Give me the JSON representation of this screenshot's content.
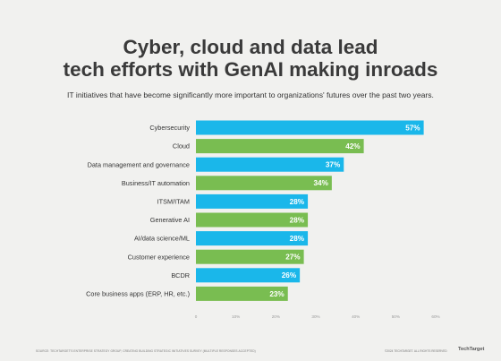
{
  "chart_data": {
    "type": "bar",
    "orientation": "horizontal",
    "title_line1": "Cyber, cloud and data lead",
    "title_line2": "tech efforts with GenAI making inroads",
    "subtitle": "IT initiatives that have become significantly more important to organizations' futures over the past two years.",
    "categories": [
      "Cybersecurity",
      "Cloud",
      "Data management and governance",
      "Business/IT automation",
      "ITSM/ITAM",
      "Generative AI",
      "AI/data science/ML",
      "Customer experience",
      "BCDR",
      "Core business apps (ERP, HR, etc.)"
    ],
    "values": [
      57,
      42,
      37,
      34,
      28,
      28,
      28,
      27,
      26,
      23
    ],
    "value_labels": [
      "57%",
      "42%",
      "37%",
      "34%",
      "28%",
      "28%",
      "28%",
      "27%",
      "26%",
      "23%"
    ],
    "bar_colors": [
      "#1ab7ea",
      "#79bd51",
      "#1ab7ea",
      "#79bd51",
      "#1ab7ea",
      "#79bd51",
      "#1ab7ea",
      "#79bd51",
      "#1ab7ea",
      "#79bd51"
    ],
    "xlim": [
      0,
      60
    ],
    "x_ticks": [
      0,
      10,
      20,
      30,
      40,
      50,
      60
    ],
    "x_tick_labels": [
      "0",
      "10%",
      "20%",
      "30%",
      "40%",
      "50%",
      "60%"
    ],
    "grid": false,
    "legend": "none"
  },
  "footer": {
    "source": "SOURCE: TECHTARGET'S ENTERPRISE STRATEGY GROUP, CREATING BUILDING STRATEGIC INITIATIVES SURVEY (MULTIPLE RESPONSES ACCEPTED)",
    "copyright": "©2024 TECHTARGET. ALL RIGHTS RESERVED",
    "logo": "TechTarget"
  }
}
